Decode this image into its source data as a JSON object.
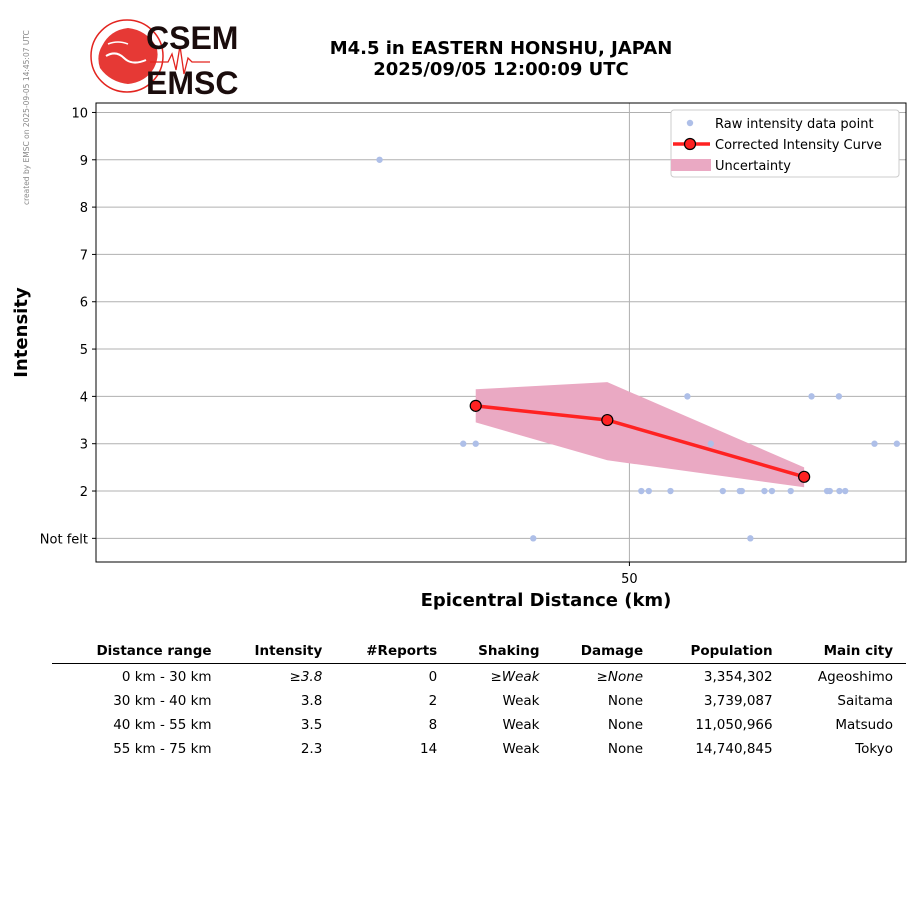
{
  "side_note": "created by EMSC on 2025-09-05 14:45:07 UTC",
  "logo": {
    "top": "CSEM",
    "bottom": "EMSC",
    "color": "#e3241f"
  },
  "title": {
    "line1": "M4.5 in EASTERN HONSHU, JAPAN",
    "line2": "2025/09/05 12:00:09 UTC"
  },
  "chart_data": {
    "type": "scatter",
    "xlabel": "Epicentral Distance (km)",
    "ylabel": "Intensity",
    "xscale": "log",
    "xlim": [
      14.5,
      95
    ],
    "ylim": [
      0.5,
      10.2
    ],
    "x_ticks": [
      {
        "value": 50,
        "label": "50"
      }
    ],
    "y_ticks": [
      {
        "value": 1,
        "label": "Not felt"
      },
      {
        "value": 2,
        "label": "2"
      },
      {
        "value": 3,
        "label": "3"
      },
      {
        "value": 4,
        "label": "4"
      },
      {
        "value": 5,
        "label": "5"
      },
      {
        "value": 6,
        "label": "6"
      },
      {
        "value": 7,
        "label": "7"
      },
      {
        "value": 8,
        "label": "8"
      },
      {
        "value": 9,
        "label": "9"
      },
      {
        "value": 10,
        "label": "10"
      }
    ],
    "grid": true,
    "legend": "top-right",
    "series": [
      {
        "name": "Raw intensity data point",
        "kind": "points",
        "color": "#aebfe8",
        "points": [
          [
            35,
            3.8
          ],
          [
            35,
            3
          ],
          [
            28,
            9
          ],
          [
            34,
            3
          ],
          [
            40,
            1
          ],
          [
            51.4,
            2
          ],
          [
            52.3,
            2
          ],
          [
            55,
            2
          ],
          [
            57.2,
            4
          ],
          [
            60.4,
            3
          ],
          [
            62.1,
            2
          ],
          [
            64.6,
            2
          ],
          [
            64.9,
            2
          ],
          [
            66.2,
            1
          ],
          [
            68.4,
            2
          ],
          [
            69.6,
            2
          ],
          [
            72.7,
            2
          ],
          [
            76.3,
            4
          ],
          [
            79.1,
            2
          ],
          [
            79.6,
            2
          ],
          [
            81.4,
            2
          ],
          [
            82.5,
            2
          ],
          [
            81.3,
            4
          ],
          [
            88.3,
            3
          ],
          [
            93,
            3
          ]
        ]
      },
      {
        "name": "Corrected Intensity Curve",
        "kind": "line",
        "color": "#ff2222",
        "points": [
          [
            35,
            3.8
          ],
          [
            47.5,
            3.5
          ],
          [
            75,
            2.3
          ]
        ]
      },
      {
        "name": "Uncertainty",
        "kind": "band",
        "color": "#eaa9c3",
        "upper": [
          [
            35,
            4.15
          ],
          [
            47.5,
            4.3
          ],
          [
            75,
            2.5
          ]
        ],
        "lower": [
          [
            35,
            3.45
          ],
          [
            47.5,
            2.65
          ],
          [
            75,
            2.08
          ]
        ]
      }
    ]
  },
  "table": {
    "headers": [
      "Distance range",
      "Intensity",
      "#Reports",
      "Shaking",
      "Damage",
      "Population",
      "Main city"
    ],
    "rows": [
      {
        "range": "0 km -   30 km",
        "intensity": "≥3.8",
        "reports": "0",
        "shaking": "≥Weak",
        "damage": "≥None",
        "population": "3,354,302",
        "city": "Ageoshimo"
      },
      {
        "range": "30 km -   40 km",
        "intensity": "3.8",
        "reports": "2",
        "shaking": "Weak",
        "damage": "None",
        "population": "3,739,087",
        "city": "Saitama"
      },
      {
        "range": "40 km -   55 km",
        "intensity": "3.5",
        "reports": "8",
        "shaking": "Weak",
        "damage": "None",
        "population": "11,050,966",
        "city": "Matsudo"
      },
      {
        "range": "55 km -   75 km",
        "intensity": "2.3",
        "reports": "14",
        "shaking": "Weak",
        "damage": "None",
        "population": "14,740,845",
        "city": "Tokyo"
      }
    ]
  }
}
